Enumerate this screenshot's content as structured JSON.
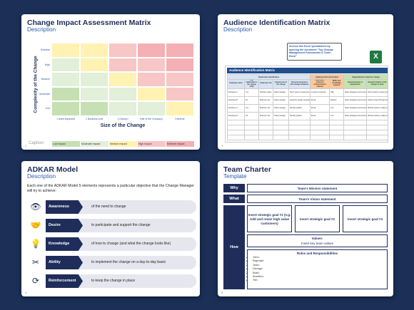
{
  "slide1": {
    "title": "Change Impact Assessment Matrix",
    "subtitle": "Description",
    "ylabel": "Complexity of the Change",
    "xlabel": "Size of the Change",
    "yticks": [
      "Extreme",
      "High",
      "Medium",
      "Moderate",
      "Low"
    ],
    "xticks": [
      "1 team impacted",
      "1 Business Unit",
      "1 Division",
      "Half of the Company",
      "Extreme"
    ],
    "caption": "Caption:",
    "legend": [
      "Low Impact",
      "Moderate Impact",
      "Medium Impact",
      "High Impact",
      "Extreme Impact"
    ],
    "colors": {
      "low": "#c6e0b4",
      "moderate": "#e2efd9",
      "medium": "#fff2b3",
      "high": "#f7c6c6",
      "extreme": "#f4b0b4"
    },
    "matrix": [
      [
        "medium",
        "medium",
        "high",
        "extreme",
        "extreme"
      ],
      [
        "moderate",
        "medium",
        "high",
        "high",
        "extreme"
      ],
      [
        "moderate",
        "moderate",
        "medium",
        "high",
        "high"
      ],
      [
        "low",
        "moderate",
        "moderate",
        "medium",
        "high"
      ],
      [
        "low",
        "low",
        "moderate",
        "moderate",
        "medium"
      ]
    ],
    "page": "2"
  },
  "slide2": {
    "title": "Audience Identification Matrix",
    "subtitle": "Description",
    "callout": "Access this Excel spreadsheet by opening the document \"Top Change Management Frameworks & Tools - Excel\"",
    "excel_icon": "X",
    "sheet_title": "Audience Identification Matrix",
    "group_headers": [
      "Stakeholder Identification",
      "Employee Personal Context",
      "Organizational context for change"
    ],
    "col_headers": [
      "Employee name",
      "Key stakeholder in the change (Y/N)",
      "Employee role",
      "Impact level of the change",
      "Personal experience with change initiatives",
      "Employee's preferred communication channel",
      "Skills and knowledge required",
      "Impacted teams or departments",
      "Expected impact of the change on work"
    ],
    "rows": [
      [
        "Employee A",
        "Yes",
        "Decision-maker",
        "Sales manager",
        "Has 5 years of experience with change initiatives",
        "In-person meetings",
        "High",
        "Sales strategies and processes",
        "Direct impact on sales performance"
      ],
      [
        "Employee B",
        "No",
        "Business unit",
        "Sales manager",
        "Quarterly update meetings",
        "Email",
        "Medium",
        "Sales strategies and processes",
        "Indirect impact through team changes"
      ],
      [
        "Employee C",
        "Yes",
        "Business unit",
        "Sales manager",
        "Weekly updates",
        "Email",
        "Low",
        "Sales strategies and processes",
        "Minimal impact on daily work"
      ],
      [
        "Employee D",
        "No",
        "Business unit",
        "Sales manager",
        "Weekly updates",
        "Email",
        "Low",
        "Sales strategies and processes",
        "Minimal impact on daily work"
      ]
    ],
    "page": "3"
  },
  "slide3": {
    "title": "ADKAR Model",
    "subtitle": "Description",
    "intro": "Each one of the ADKAR Model 5 elements represents a particular objective that the Change Manager will try to achieve:",
    "items": [
      {
        "label": "Awareness",
        "desc": "of the need to change",
        "icon": "eye-icon",
        "glyph": "👁"
      },
      {
        "label": "Desire",
        "desc": "to participate and support the change",
        "icon": "handshake-icon",
        "glyph": "🤝"
      },
      {
        "label": "Knowledge",
        "desc": "of how to change (and what the change looks like)",
        "icon": "lightbulb-icon",
        "glyph": "💡"
      },
      {
        "label": "Ability",
        "desc": "to implement the change on a day-to-day basis",
        "icon": "tools-icon",
        "glyph": "✂"
      },
      {
        "label": "Reinforcement",
        "desc": "to keep the change in place",
        "icon": "refresh-icon",
        "glyph": "⟳"
      }
    ],
    "page": "4"
  },
  "slide4": {
    "title": "Team Charter",
    "subtitle": "Template",
    "why_label": "Why",
    "why_text": "Team's Mission statement",
    "what_label": "What",
    "what_text": "Team's Vision statement",
    "how_label": "How",
    "goals": [
      "Insert strategic goal #1 (e.g. Add and retain high value customers)",
      "Insert strategic goal #2",
      "Insert strategic goal #3"
    ],
    "values_title": "Values:",
    "values_text": "Insert key team values",
    "roles_title": "Roles and Responsibilities",
    "roles": [
      "John:",
      "Raphael:",
      "Jean:",
      "George:",
      "Brad:",
      "Aurelien:",
      "Tim:"
    ],
    "page": "5"
  }
}
